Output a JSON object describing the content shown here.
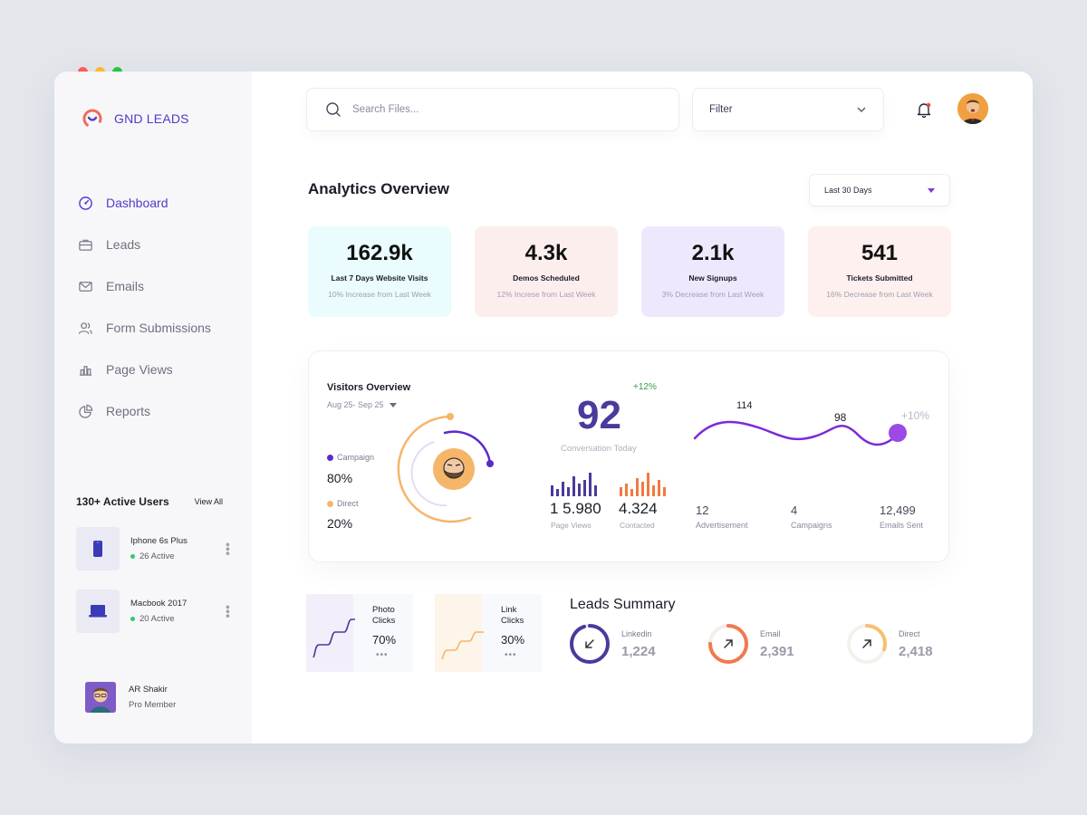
{
  "app": {
    "name": "GND LEADS"
  },
  "sidebar": {
    "items": [
      {
        "label": "Dashboard",
        "icon": "gauge-icon",
        "active": true
      },
      {
        "label": "Leads",
        "icon": "briefcase-icon",
        "active": false
      },
      {
        "label": "Emails",
        "icon": "mail-icon",
        "active": false
      },
      {
        "label": "Form Submissions",
        "icon": "users-icon",
        "active": false
      },
      {
        "label": "Page Views",
        "icon": "bar-chart-icon",
        "active": false
      },
      {
        "label": "Reports",
        "icon": "pie-chart-icon",
        "active": false
      }
    ],
    "active_users": {
      "title": "130+ Active Users",
      "view_all": "View All",
      "devices": [
        {
          "name": "Iphone 6s Plus",
          "active": "26 Active",
          "icon": "phone-icon"
        },
        {
          "name": "Macbook 2017",
          "active": "20 Active",
          "icon": "laptop-icon"
        }
      ]
    },
    "profile": {
      "name": "AR Shakir",
      "role": "Pro Member"
    }
  },
  "header": {
    "search_placeholder": "Search Files...",
    "filter_label": "Filter"
  },
  "overview": {
    "title": "Analytics Overview",
    "range": "Last 30 Days",
    "stats": [
      {
        "value": "162.9k",
        "label": "Last 7 Days Website Visits",
        "sub": "10% Increase from Last Week",
        "bg": "#eafcfd"
      },
      {
        "value": "4.3k",
        "label": "Demos Scheduled",
        "sub": "12% Increse from Last Week",
        "bg": "#fdeeee"
      },
      {
        "value": "2.1k",
        "label": "New Signups",
        "sub": "3% Decrease from Last Week",
        "bg": "#efe8fd"
      },
      {
        "value": "541",
        "label": "Tickets Submitted",
        "sub": "16% Decrease from Last Week",
        "bg": "#fdf0ee"
      }
    ]
  },
  "visitors": {
    "title": "Visitors Overview",
    "date_range": "Aug 25- Sep 25",
    "campaign_label": "Campaign",
    "campaign_pct": "80%",
    "direct_label": "Direct",
    "direct_pct": "20%",
    "campaign_color": "#5b2cc9",
    "direct_color": "#f5b66a",
    "conversation_value": "92",
    "conversation_change": "+12%",
    "conversation_label": "Conversation Today",
    "page_views_value": "1 5.980",
    "page_views_label": "Page Views",
    "contacted_value": "4.324",
    "contacted_label": "Contacted",
    "wave_peak": "114",
    "wave_mid": "98",
    "wave_change": "+10%",
    "advertisement_value": "12",
    "advertisement_label": "Advertisement",
    "campaigns_value": "4",
    "campaigns_label": "Campaigns",
    "emails_value": "12,499",
    "emails_label": "Emails Sent"
  },
  "clicks": [
    {
      "label_1": "Photo",
      "label_2": "Clicks",
      "pct": "70%",
      "color": "#5b2cc9",
      "bg": "#f2effa"
    },
    {
      "label_1": "Link",
      "label_2": "Clicks",
      "pct": "30%",
      "color": "#f5b66a",
      "bg": "#fdf4ea"
    }
  ],
  "leads_summary": {
    "title": "Leads Summary",
    "items": [
      {
        "label": "Linkedin",
        "value": "1,224",
        "color": "#4b3a9c",
        "icon": "arrow-down-left-icon",
        "fraction": 0.95
      },
      {
        "label": "Email",
        "value": "2,391",
        "color": "#f07a50",
        "icon": "arrow-up-right-icon",
        "fraction": 0.75
      },
      {
        "label": "Direct",
        "value": "2,418",
        "color": "#f5c070",
        "icon": "arrow-up-right-icon",
        "fraction": 0.3
      }
    ]
  }
}
